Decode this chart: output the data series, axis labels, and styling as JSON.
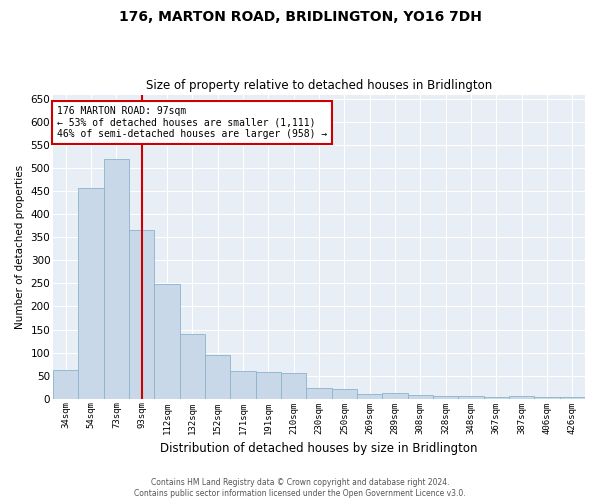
{
  "title": "176, MARTON ROAD, BRIDLINGTON, YO16 7DH",
  "subtitle": "Size of property relative to detached houses in Bridlington",
  "xlabel": "Distribution of detached houses by size in Bridlington",
  "ylabel": "Number of detached properties",
  "footer1": "Contains HM Land Registry data © Crown copyright and database right 2024.",
  "footer2": "Contains public sector information licensed under the Open Government Licence v3.0.",
  "annotation_title": "176 MARTON ROAD: 97sqm",
  "annotation_line1": "← 53% of detached houses are smaller (1,111)",
  "annotation_line2": "46% of semi-detached houses are larger (958) →",
  "vline_x": 3.0,
  "bar_color": "#c8d8e8",
  "bar_edge_color": "#8ab4cc",
  "vline_color": "#cc0000",
  "annotation_box_color": "#cc0000",
  "background_color": "#e8eef5",
  "categories": [
    "34sqm",
    "54sqm",
    "73sqm",
    "93sqm",
    "112sqm",
    "132sqm",
    "152sqm",
    "171sqm",
    "191sqm",
    "210sqm",
    "230sqm",
    "250sqm",
    "269sqm",
    "289sqm",
    "308sqm",
    "328sqm",
    "348sqm",
    "367sqm",
    "387sqm",
    "406sqm",
    "426sqm"
  ],
  "values": [
    62,
    457,
    521,
    367,
    248,
    140,
    95,
    60,
    57,
    55,
    24,
    22,
    10,
    12,
    7,
    6,
    5,
    3,
    5,
    3,
    4
  ],
  "ylim": [
    0,
    660
  ],
  "yticks": [
    0,
    50,
    100,
    150,
    200,
    250,
    300,
    350,
    400,
    450,
    500,
    550,
    600,
    650
  ]
}
